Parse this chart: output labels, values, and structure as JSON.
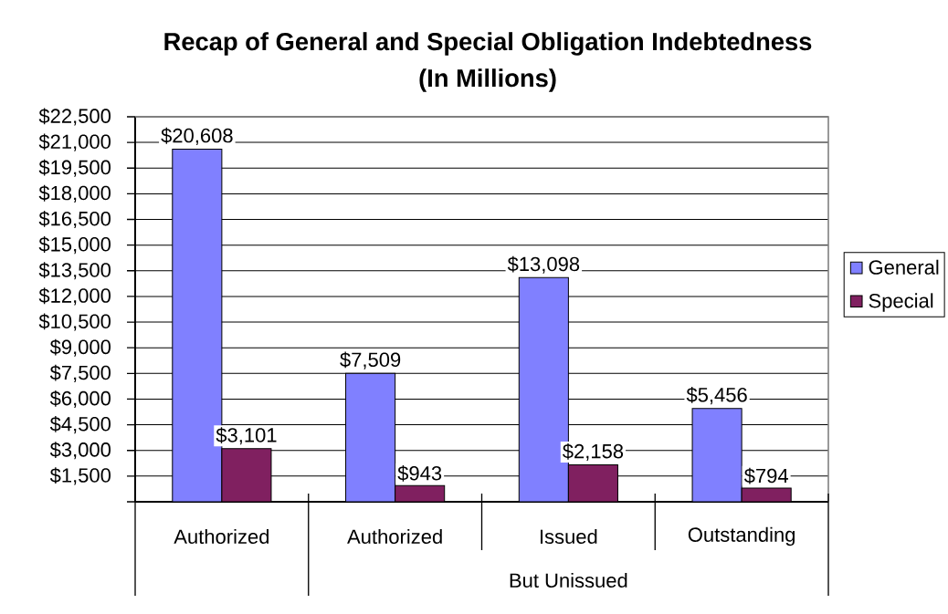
{
  "chart_data": {
    "type": "bar",
    "title": "Recap of General and Special Obligation Indebtedness",
    "subtitle": "(In Millions)",
    "categories": [
      "Authorized",
      "Authorized",
      "Issued",
      "Outstanding"
    ],
    "annotations": [
      "But Unissued"
    ],
    "series": [
      {
        "name": "General",
        "color": "#8080ff",
        "values": [
          20608,
          7509,
          13098,
          5456
        ],
        "value_labels": [
          "$20,608",
          "$7,509",
          "$13,098",
          "$5,456"
        ]
      },
      {
        "name": "Special",
        "color": "#802060",
        "values": [
          3101,
          943,
          2158,
          794
        ],
        "value_labels": [
          "$3,101",
          "$943",
          "$2,158",
          "$794"
        ]
      }
    ],
    "ylim": [
      0,
      22500
    ],
    "yticks": [
      {
        "value": 0,
        "label": null
      },
      {
        "value": 1500,
        "label": "$1,500"
      },
      {
        "value": 3000,
        "label": "$3,000"
      },
      {
        "value": 4500,
        "label": "$4,500"
      },
      {
        "value": 6000,
        "label": "$6,000"
      },
      {
        "value": 7500,
        "label": "$7,500"
      },
      {
        "value": 9000,
        "label": "$9,000"
      },
      {
        "value": 10500,
        "label": "$10,500"
      },
      {
        "value": 12000,
        "label": "$12,000"
      },
      {
        "value": 13500,
        "label": "$13,500"
      },
      {
        "value": 15000,
        "label": "$15,000"
      },
      {
        "value": 16500,
        "label": "$16,500"
      },
      {
        "value": 18000,
        "label": "$18,000"
      },
      {
        "value": 19500,
        "label": "$19,500"
      },
      {
        "value": 21000,
        "label": "$21,000"
      },
      {
        "value": 22500,
        "label": "$22,500"
      }
    ],
    "grid": "y",
    "legend": "right"
  }
}
